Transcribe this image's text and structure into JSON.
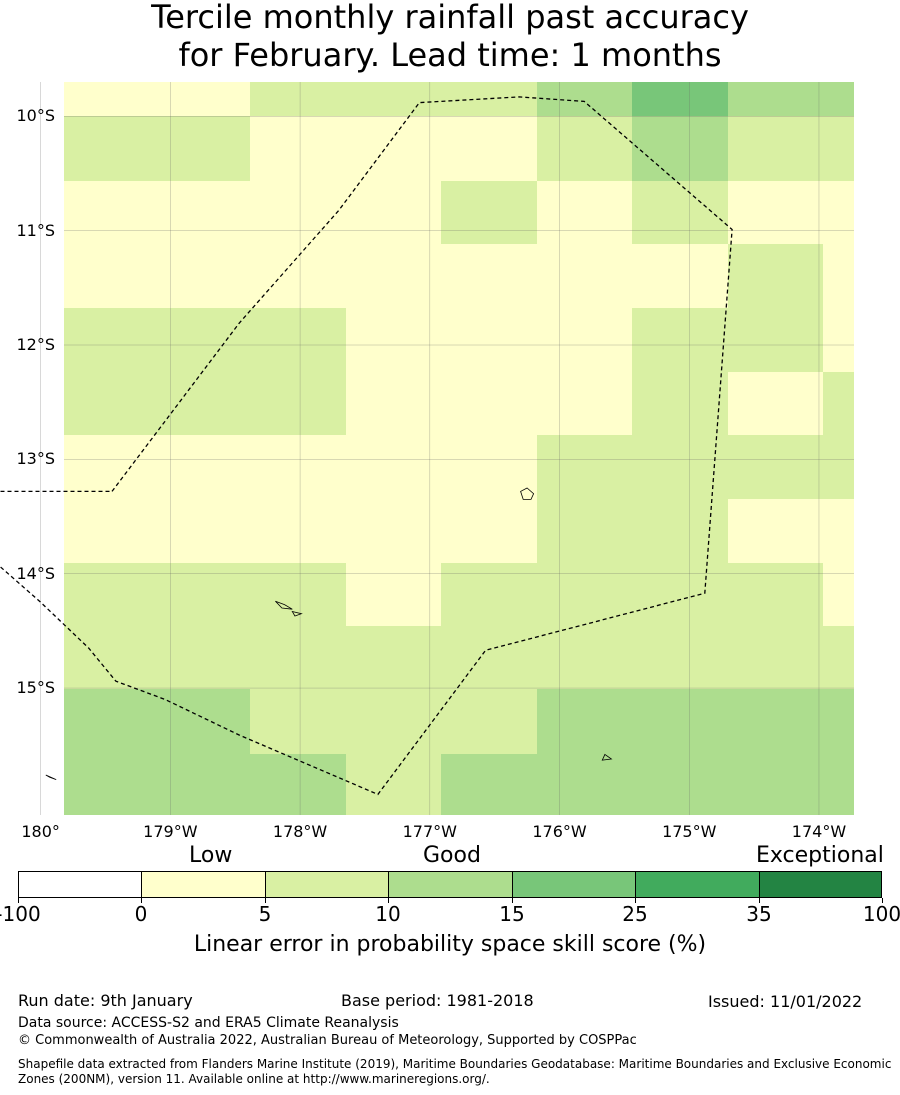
{
  "title_line1": "Tercile monthly rainfall past accuracy",
  "title_line2": "for February. Lead time: 1 months",
  "map": {
    "lon_range": [
      -179.82,
      -173.73
    ],
    "lat_range": [
      -16.11,
      -9.7
    ],
    "lat_ticks": [
      {
        "value": -10,
        "label": "10°S"
      },
      {
        "value": -11,
        "label": "11°S"
      },
      {
        "value": -12,
        "label": "12°S"
      },
      {
        "value": -13,
        "label": "13°S"
      },
      {
        "value": -14,
        "label": "14°S"
      },
      {
        "value": -15,
        "label": "15°S"
      }
    ],
    "lon_ticks": [
      {
        "value": 180,
        "label": "180°"
      },
      {
        "value": -179,
        "label": "179°W"
      },
      {
        "value": -178,
        "label": "178°W"
      },
      {
        "value": -177,
        "label": "177°W"
      },
      {
        "value": -176,
        "label": "176°W"
      },
      {
        "value": -175,
        "label": "175°W"
      },
      {
        "value": -174,
        "label": "174°W"
      }
    ],
    "grid_rows_north_to_south": [
      "1,2,2,2,3,4,3,3",
      "2,1,1,1,2,3,2,2",
      "1,1,1,2,1,2,1,1",
      "1,1,1,1,1,1,2,1",
      "2,2,1,1,1,2,2,1",
      "2,2,1,1,1,2,1,2",
      "1,1,1,1,2,2,2,2",
      "1,1,1,1,2,2,1,1",
      "2,2,1,2,2,2,2,1",
      "2,2,2,2,2,2,2,2",
      "3,2,2,2,3,3,3,3",
      "3,3,2,3,3,3,3,3"
    ],
    "grid_note": "values index into colorbar.colors",
    "eez_boundary": [
      [
        -179.45,
        -13.28
      ],
      [
        -178.47,
        -11.81
      ],
      [
        -177.7,
        -10.82
      ],
      [
        -177.08,
        -9.88
      ],
      [
        -176.31,
        -9.83
      ],
      [
        -175.81,
        -9.87
      ],
      [
        -174.67,
        -10.99
      ],
      [
        -174.88,
        -14.17
      ],
      [
        -176.57,
        -14.67
      ],
      [
        -177.4,
        -15.93
      ],
      [
        -178.47,
        -15.41
      ],
      [
        -179.04,
        -15.1
      ],
      [
        -179.42,
        -14.94
      ],
      [
        -179.63,
        -14.65
      ],
      [
        -180,
        -14.25
      ],
      [
        -180.35,
        -13.9
      ],
      [
        -180.54,
        -13.35
      ],
      [
        -180.48,
        -13.28
      ]
    ],
    "islands": [
      {
        "name": "island-a",
        "points": [
          [
            -176.25,
            -13.25
          ],
          [
            -176.2,
            -13.3
          ],
          [
            -176.22,
            -13.35
          ],
          [
            -176.28,
            -13.35
          ],
          [
            -176.3,
            -13.28
          ]
        ]
      },
      {
        "name": "island-b",
        "points": [
          [
            -178.19,
            -14.24
          ],
          [
            -178.14,
            -14.3
          ],
          [
            -178.06,
            -14.31
          ],
          [
            -178.12,
            -14.27
          ]
        ]
      },
      {
        "name": "island-c",
        "points": [
          [
            -178.06,
            -14.33
          ],
          [
            -177.99,
            -14.35
          ],
          [
            -178.04,
            -14.37
          ]
        ]
      },
      {
        "name": "island-d",
        "points": [
          [
            -175.65,
            -15.58
          ],
          [
            -175.6,
            -15.62
          ],
          [
            -175.67,
            -15.63
          ]
        ]
      },
      {
        "name": "island-e",
        "points": [
          [
            -179.96,
            -15.76
          ],
          [
            -179.88,
            -15.8
          ],
          [
            -179.93,
            -15.78
          ]
        ]
      }
    ]
  },
  "colorbar": {
    "category_labels": [
      "Low",
      "Good",
      "Exceptional"
    ],
    "tick_labels": [
      "-100",
      "0",
      "5",
      "10",
      "15",
      "25",
      "35",
      "100"
    ],
    "colors": [
      "#ffffff",
      "#ffffcc",
      "#d9f0a3",
      "#addd8e",
      "#78c679",
      "#41ab5d",
      "#238443"
    ],
    "title": "Linear error in probability space skill score (%)"
  },
  "footer": {
    "run_date": "Run date: 9th January",
    "base_period": "Base period: 1981-2018",
    "issued": "Issued: 11/01/2022",
    "data_source": "Data source: ACCESS-S2 and ERA5 Climate Reanalysis",
    "copyright": "© Commonwealth of Australia 2022, Australian Bureau of Meteorology, Supported by COSPPac",
    "shapefile_note": "Shapefile data extracted from Flanders Marine Institute (2019), Maritime Boundaries Geodatabase: Maritime Boundaries and Exclusive Economic Zones (200NM), version 11. Available online at http://www.marineregions.org/."
  }
}
